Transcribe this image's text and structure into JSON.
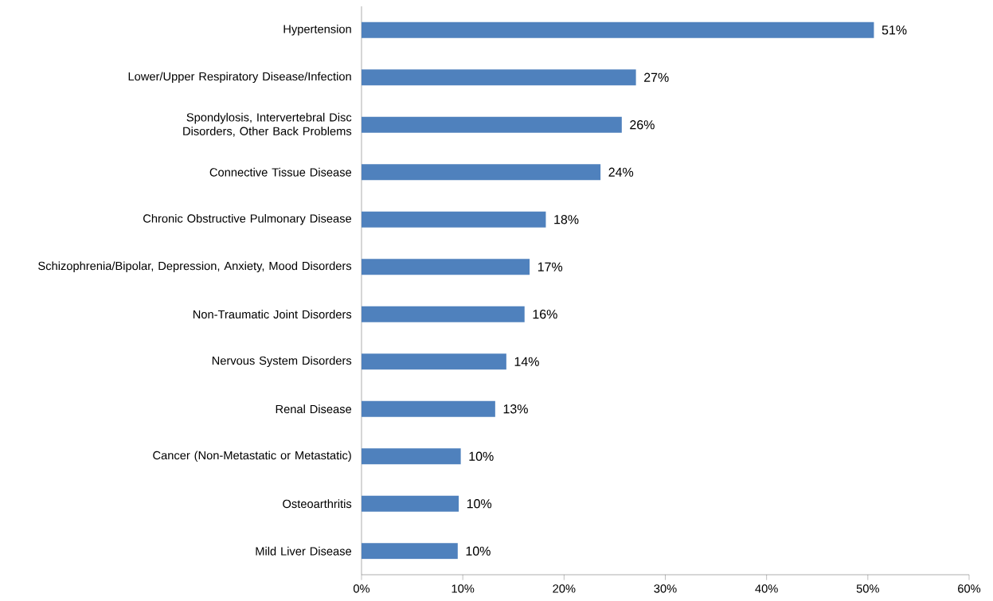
{
  "chart_data": {
    "type": "bar",
    "orientation": "horizontal",
    "color": "#4f81bd",
    "categories": [
      "Hypertension",
      "Lower/Upper Respiratory Disease/Infection",
      "Spondylosis, Intervertebral Disc Disorders, Other Back Problems",
      "Connective Tissue Disease",
      "Chronic Obstructive Pulmonary Disease",
      "Schizophrenia/Bipolar, Depression, Anxiety, Mood Disorders",
      "Non-Traumatic Joint Disorders",
      "Nervous System Disorders",
      "Renal Disease",
      "Cancer (Non-Metastatic or Metastatic)",
      "Osteoarthritis",
      "Mild Liver Disease"
    ],
    "values": [
      50.6,
      27.1,
      25.7,
      23.6,
      18.2,
      16.6,
      16.1,
      14.3,
      13.2,
      9.8,
      9.6,
      9.5
    ],
    "value_labels": [
      "51%",
      "27%",
      "26%",
      "24%",
      "18%",
      "17%",
      "16%",
      "14%",
      "13%",
      "10%",
      "10%",
      "10%"
    ],
    "xlim": [
      0,
      60
    ],
    "xticks": [
      {
        "value": 0,
        "label": "0%"
      },
      {
        "value": 10,
        "label": "10%"
      },
      {
        "value": 20,
        "label": "20%"
      },
      {
        "value": 30,
        "label": "30%"
      },
      {
        "value": 40,
        "label": "40%"
      },
      {
        "value": 50,
        "label": "50%"
      },
      {
        "value": 60,
        "label": "60%"
      }
    ],
    "grid": false
  }
}
